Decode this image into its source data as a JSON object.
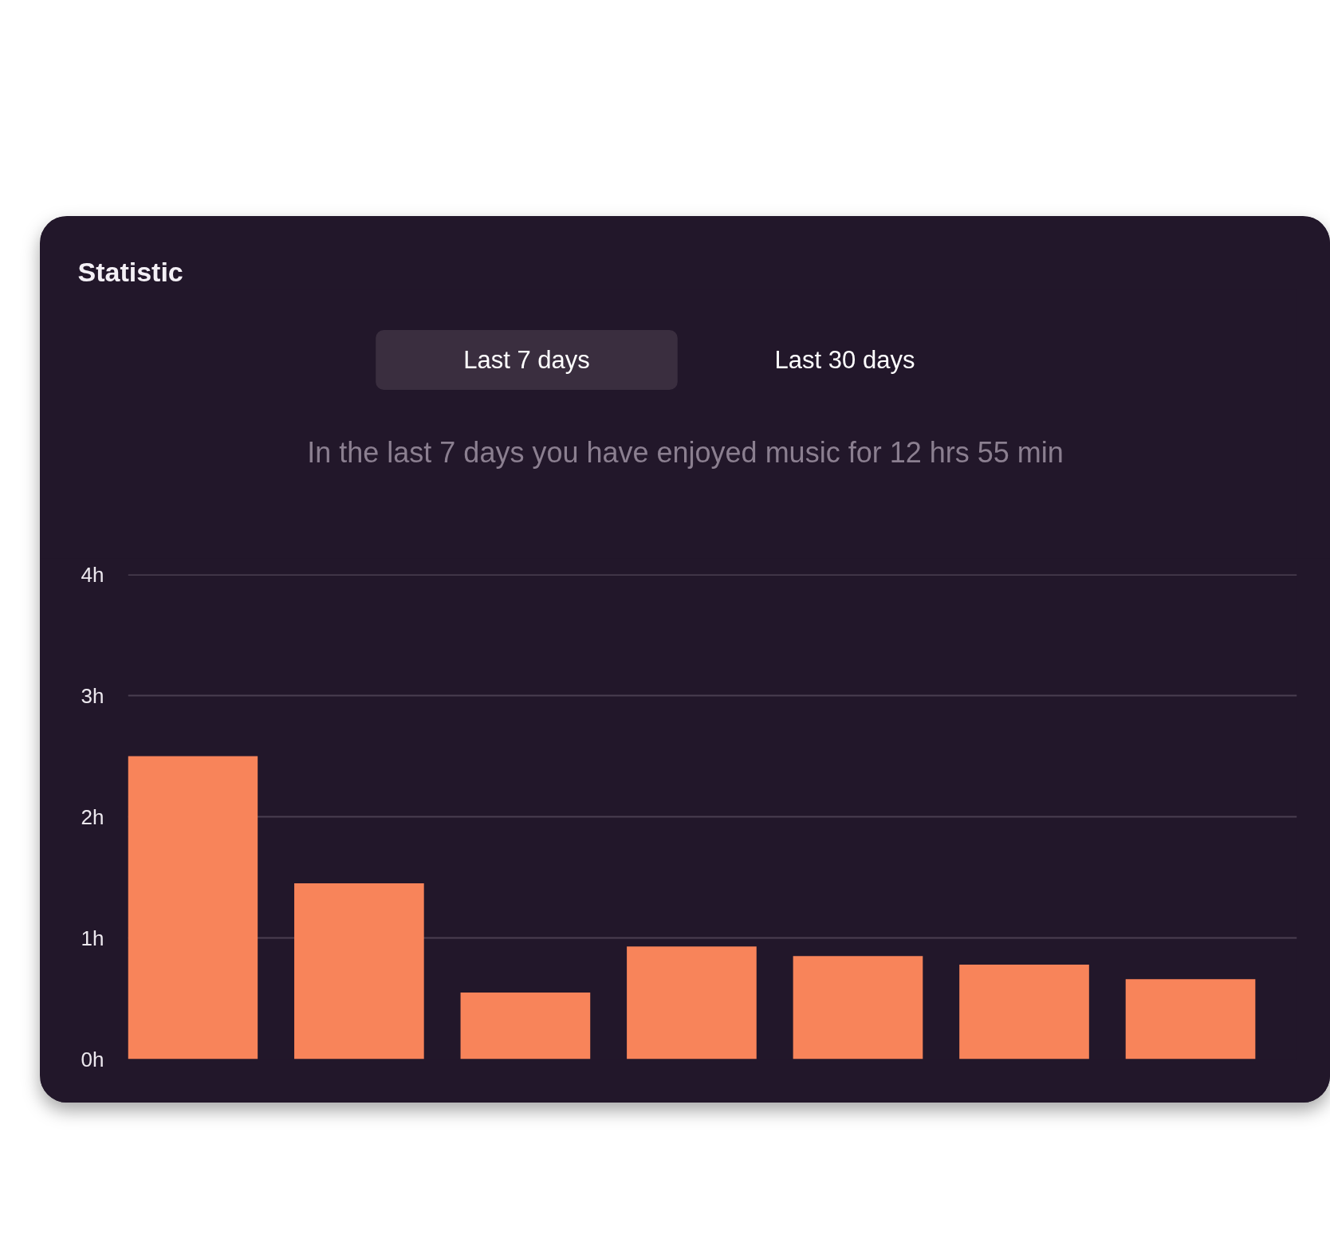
{
  "chart_data": {
    "type": "bar",
    "title": "Statistic",
    "subtitle": "In the last 7 days you have enjoyed music for 12 hrs 55 min",
    "annotations": [
      "Last 7 days",
      "Last 30 days"
    ],
    "categories": [
      null,
      null,
      null,
      null,
      null,
      null,
      null
    ],
    "values": [
      2.5,
      1.45,
      0.55,
      0.93,
      0.85,
      0.78,
      0.66
    ],
    "color": "#f8845a",
    "ylim": [
      0,
      4
    ],
    "yticks": [
      {
        "value": 0,
        "label": "0h"
      },
      {
        "value": 1,
        "label": "1h"
      },
      {
        "value": 2,
        "label": "2h"
      },
      {
        "value": 3,
        "label": "3h"
      },
      {
        "value": 4,
        "label": "4h"
      }
    ],
    "grid": "y",
    "tick_labels": "y"
  }
}
